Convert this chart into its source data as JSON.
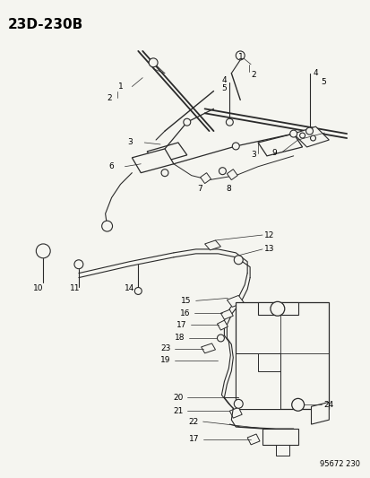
{
  "title": "23D-230B",
  "footer": "95672 230",
  "bg_color": "#f5f5f0",
  "line_color": "#2a2a2a",
  "label_color": "#000000",
  "title_fontsize": 11,
  "label_fontsize": 6.5,
  "footer_fontsize": 6,
  "fig_width": 4.14,
  "fig_height": 5.33,
  "dpi": 100
}
